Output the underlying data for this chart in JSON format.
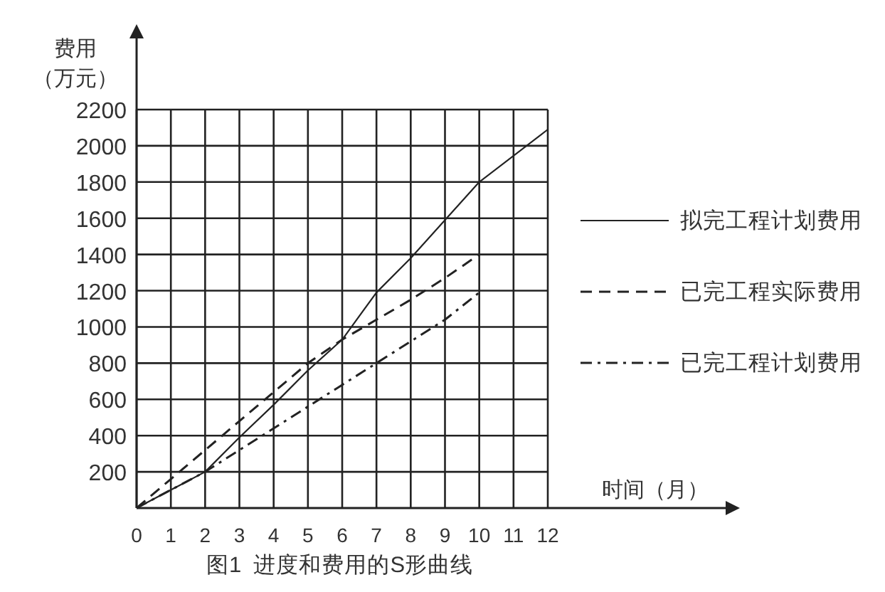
{
  "chart_data": {
    "type": "line",
    "title": "图1  进度和费用的S形曲线",
    "xlabel": "时间（月）",
    "ylabel": "费用（万元）",
    "xlim": [
      0,
      12
    ],
    "xticks": [
      0,
      1,
      2,
      3,
      4,
      5,
      6,
      7,
      8,
      9,
      10,
      11,
      12
    ],
    "ylim": [
      0,
      2200
    ],
    "yticks": [
      200,
      400,
      600,
      800,
      1000,
      1200,
      1400,
      1600,
      1800,
      2000,
      2200
    ],
    "grid": true,
    "legend": "right",
    "series": [
      {
        "name": "拟完工程计划费用",
        "color": "#222222",
        "line_style": "solid",
        "x": [
          0,
          1,
          2,
          3,
          4,
          5,
          6,
          7,
          8,
          9,
          10,
          12
        ],
        "values": [
          0,
          100,
          200,
          390,
          570,
          760,
          930,
          1190,
          1380,
          1590,
          1800,
          2090
        ]
      },
      {
        "name": "已完工程实际费用",
        "color": "#222222",
        "line_style": "dashed",
        "x": [
          0,
          1,
          2,
          3,
          4,
          5,
          6,
          7,
          8,
          9,
          10
        ],
        "values": [
          0,
          160,
          320,
          480,
          640,
          800,
          930,
          1040,
          1150,
          1270,
          1400
        ]
      },
      {
        "name": "已完工程计划费用",
        "color": "#222222",
        "line_style": "dashdot",
        "x": [
          0,
          1,
          2,
          3,
          4,
          5,
          6,
          7,
          8,
          9,
          10
        ],
        "values": [
          0,
          100,
          200,
          320,
          440,
          560,
          680,
          800,
          920,
          1040,
          1190
        ]
      }
    ]
  }
}
